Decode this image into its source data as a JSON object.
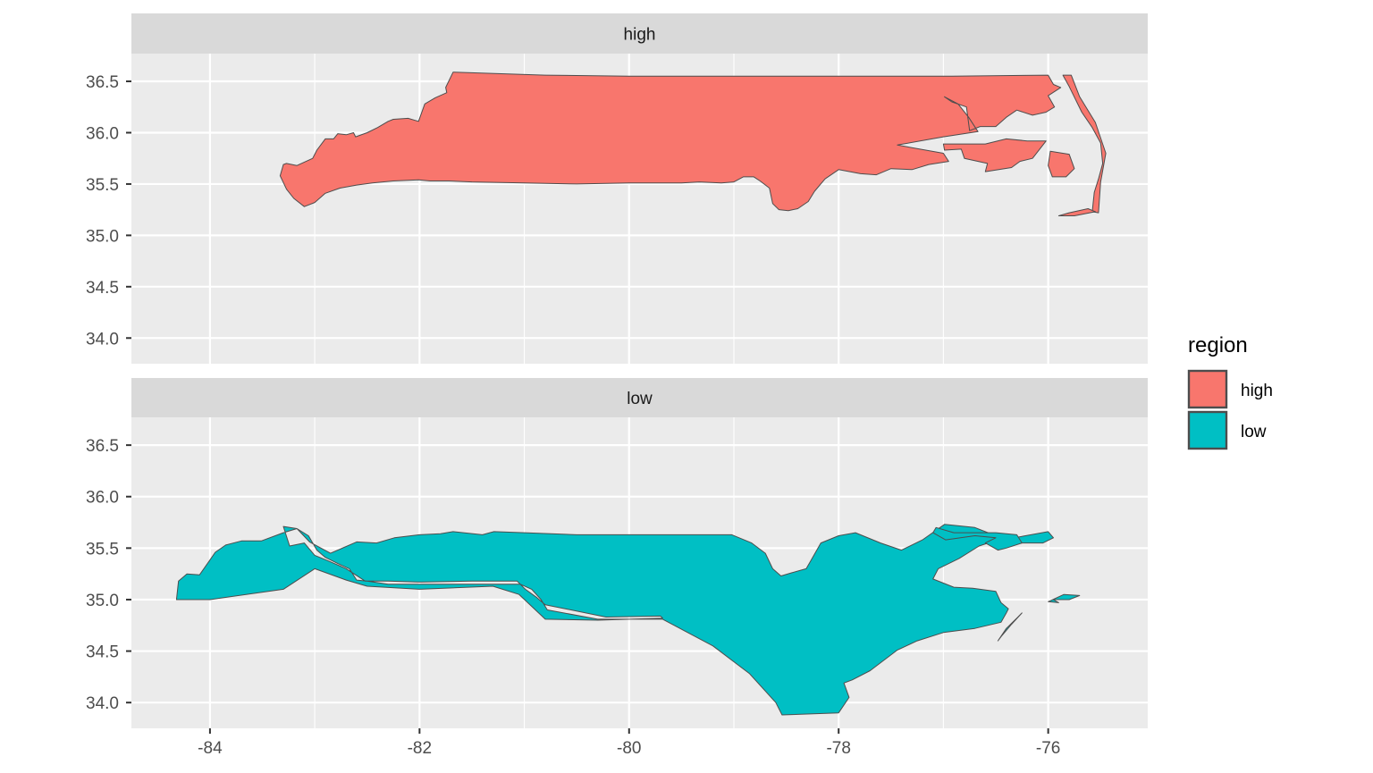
{
  "chart_data": {
    "type": "map",
    "facet_variable": "region",
    "facets": [
      "high",
      "low"
    ],
    "x_ticks": [
      -84,
      -82,
      -80,
      -78,
      -76
    ],
    "x_tick_labels": [
      "-84",
      "-82",
      "-80",
      "-78",
      "-76"
    ],
    "y_ticks": [
      34.0,
      34.5,
      35.0,
      35.5,
      36.0,
      36.5
    ],
    "y_tick_labels": [
      "34.0",
      "34.5",
      "35.0",
      "35.5",
      "36.0",
      "36.5"
    ],
    "xlim": [
      -84.75,
      -75.05
    ],
    "ylim": [
      33.75,
      36.77
    ],
    "grid": true,
    "legend": {
      "title": "region",
      "position": "right",
      "entries": [
        {
          "label": "high",
          "color": "#F8766D"
        },
        {
          "label": "low",
          "color": "#00BFC4"
        }
      ]
    },
    "colors": {
      "panel_bg": "#EBEBEB",
      "strip_bg": "#D9D9D9",
      "grid": "#FFFFFF",
      "outline": "#4D4D4D"
    },
    "regions": {
      "high": {
        "main": [
          [
            -83.27,
            35.7
          ],
          [
            -83.17,
            35.68
          ],
          [
            -83.02,
            35.75
          ],
          [
            -82.98,
            35.83
          ],
          [
            -82.9,
            35.94
          ],
          [
            -82.82,
            35.94
          ],
          [
            -82.78,
            35.99
          ],
          [
            -82.7,
            35.98
          ],
          [
            -82.63,
            36.0
          ],
          [
            -82.61,
            35.96
          ],
          [
            -82.5,
            36.0
          ],
          [
            -82.4,
            36.05
          ],
          [
            -82.3,
            36.11
          ],
          [
            -82.25,
            36.13
          ],
          [
            -82.11,
            36.14
          ],
          [
            -82.01,
            36.11
          ],
          [
            -81.95,
            36.28
          ],
          [
            -81.85,
            36.34
          ],
          [
            -81.74,
            36.39
          ],
          [
            -81.75,
            36.44
          ],
          [
            -81.68,
            36.59
          ],
          [
            -80.8,
            36.56
          ],
          [
            -80.0,
            36.55
          ],
          [
            -79.0,
            36.55
          ],
          [
            -78.0,
            36.55
          ],
          [
            -76.92,
            36.55
          ],
          [
            -76.0,
            36.56
          ],
          [
            -75.95,
            36.47
          ],
          [
            -75.88,
            36.44
          ],
          [
            -76.0,
            36.36
          ],
          [
            -75.94,
            36.25
          ],
          [
            -76.02,
            36.2
          ],
          [
            -76.15,
            36.17
          ],
          [
            -76.3,
            36.22
          ],
          [
            -76.4,
            36.15
          ],
          [
            -76.5,
            36.06
          ],
          [
            -76.65,
            36.06
          ],
          [
            -76.75,
            36.02
          ],
          [
            -76.78,
            36.25
          ],
          [
            -76.92,
            36.3
          ],
          [
            -76.99,
            36.35
          ],
          [
            -76.86,
            36.28
          ],
          [
            -76.76,
            36.15
          ],
          [
            -76.67,
            36.01
          ],
          [
            -77.0,
            35.96
          ],
          [
            -77.44,
            35.88
          ],
          [
            -77.0,
            35.8
          ],
          [
            -76.95,
            35.72
          ],
          [
            -77.14,
            35.69
          ],
          [
            -77.3,
            35.64
          ],
          [
            -77.5,
            35.65
          ],
          [
            -77.64,
            35.59
          ],
          [
            -77.79,
            35.6
          ],
          [
            -78.0,
            35.64
          ],
          [
            -78.13,
            35.55
          ],
          [
            -78.23,
            35.43
          ],
          [
            -78.29,
            35.33
          ],
          [
            -78.39,
            35.26
          ],
          [
            -78.48,
            35.24
          ],
          [
            -78.57,
            35.25
          ],
          [
            -78.63,
            35.31
          ],
          [
            -78.66,
            35.46
          ],
          [
            -78.75,
            35.53
          ],
          [
            -78.81,
            35.57
          ],
          [
            -78.91,
            35.57
          ],
          [
            -79.0,
            35.52
          ],
          [
            -79.12,
            35.51
          ],
          [
            -79.33,
            35.52
          ],
          [
            -79.5,
            35.51
          ],
          [
            -80.0,
            35.51
          ],
          [
            -80.5,
            35.5
          ],
          [
            -81.0,
            35.51
          ],
          [
            -81.5,
            35.52
          ],
          [
            -81.72,
            35.53
          ],
          [
            -81.9,
            35.53
          ],
          [
            -82.01,
            35.54
          ],
          [
            -82.25,
            35.53
          ],
          [
            -82.45,
            35.51
          ],
          [
            -82.6,
            35.49
          ],
          [
            -82.76,
            35.46
          ],
          [
            -82.9,
            35.41
          ],
          [
            -83.0,
            35.32
          ],
          [
            -83.1,
            35.28
          ],
          [
            -83.2,
            35.36
          ],
          [
            -83.27,
            35.45
          ],
          [
            -83.33,
            35.58
          ],
          [
            -83.3,
            35.69
          ]
        ],
        "islands": [
          [
            [
              -75.98,
              35.82
            ],
            [
              -75.8,
              35.79
            ],
            [
              -75.75,
              35.65
            ],
            [
              -75.83,
              35.57
            ],
            [
              -75.96,
              35.57
            ],
            [
              -76.0,
              35.68
            ]
          ],
          [
            [
              -76.02,
              35.92
            ],
            [
              -76.15,
              35.75
            ],
            [
              -76.27,
              35.72
            ],
            [
              -76.35,
              35.66
            ],
            [
              -76.6,
              35.62
            ],
            [
              -76.58,
              35.7
            ],
            [
              -76.8,
              35.75
            ],
            [
              -76.83,
              35.84
            ],
            [
              -76.99,
              35.83
            ],
            [
              -77.0,
              35.89
            ],
            [
              -76.6,
              35.89
            ],
            [
              -76.4,
              35.94
            ],
            [
              -76.2,
              35.92
            ]
          ],
          [
            [
              -75.86,
              36.56
            ],
            [
              -75.8,
              36.45
            ],
            [
              -75.68,
              36.2
            ],
            [
              -75.58,
              36.05
            ],
            [
              -75.5,
              35.9
            ],
            [
              -75.48,
              35.7
            ],
            [
              -75.52,
              35.55
            ],
            [
              -75.56,
              35.42
            ],
            [
              -75.58,
              35.23
            ],
            [
              -75.52,
              35.22
            ],
            [
              -75.5,
              35.52
            ],
            [
              -75.45,
              35.8
            ],
            [
              -75.55,
              36.1
            ],
            [
              -75.7,
              36.35
            ],
            [
              -75.78,
              36.56
            ]
          ],
          [
            [
              -75.55,
              35.23
            ],
            [
              -75.75,
              35.19
            ],
            [
              -75.9,
              35.19
            ],
            [
              -75.8,
              35.22
            ],
            [
              -75.62,
              35.26
            ]
          ]
        ]
      },
      "low": {
        "main": [
          [
            -84.32,
            35.0
          ],
          [
            -84.3,
            35.18
          ],
          [
            -84.22,
            35.25
          ],
          [
            -84.1,
            35.24
          ],
          [
            -84.01,
            35.37
          ],
          [
            -83.95,
            35.46
          ],
          [
            -83.85,
            35.53
          ],
          [
            -83.7,
            35.57
          ],
          [
            -83.51,
            35.57
          ],
          [
            -83.3,
            35.65
          ],
          [
            -83.17,
            35.69
          ],
          [
            -83.06,
            35.62
          ],
          [
            -82.98,
            35.48
          ],
          [
            -82.9,
            35.41
          ],
          [
            -82.78,
            35.35
          ],
          [
            -82.67,
            35.3
          ],
          [
            -82.6,
            35.19
          ],
          [
            -82.5,
            35.18
          ],
          [
            -82.3,
            35.15
          ],
          [
            -82.0,
            35.15
          ],
          [
            -81.5,
            35.15
          ],
          [
            -81.04,
            35.15
          ],
          [
            -80.93,
            35.1
          ],
          [
            -80.84,
            35.0
          ],
          [
            -80.78,
            34.9
          ],
          [
            -80.3,
            34.81
          ],
          [
            -79.68,
            34.81
          ],
          [
            -79.2,
            34.55
          ],
          [
            -78.85,
            34.28
          ],
          [
            -78.6,
            34.0
          ],
          [
            -78.54,
            33.88
          ],
          [
            -78.0,
            33.9
          ],
          [
            -77.9,
            34.05
          ],
          [
            -77.95,
            34.19
          ],
          [
            -77.87,
            34.22
          ],
          [
            -77.7,
            34.31
          ],
          [
            -77.44,
            34.51
          ],
          [
            -77.25,
            34.6
          ],
          [
            -77.0,
            34.68
          ],
          [
            -76.7,
            34.72
          ],
          [
            -76.45,
            34.78
          ],
          [
            -76.4,
            34.87
          ],
          [
            -76.38,
            34.91
          ],
          [
            -76.45,
            34.97
          ],
          [
            -76.5,
            35.08
          ],
          [
            -76.72,
            35.11
          ],
          [
            -76.9,
            35.12
          ],
          [
            -77.1,
            35.2
          ],
          [
            -77.05,
            35.3
          ],
          [
            -76.85,
            35.4
          ],
          [
            -76.66,
            35.52
          ],
          [
            -76.54,
            35.56
          ],
          [
            -76.0,
            35.66
          ],
          [
            -75.95,
            35.6
          ],
          [
            -76.05,
            35.55
          ],
          [
            -76.28,
            35.55
          ],
          [
            -76.5,
            35.62
          ],
          [
            -76.7,
            35.7
          ],
          [
            -76.99,
            35.73
          ],
          [
            -77.2,
            35.58
          ],
          [
            -77.4,
            35.48
          ],
          [
            -77.6,
            35.55
          ],
          [
            -77.84,
            35.65
          ],
          [
            -78.0,
            35.62
          ],
          [
            -78.17,
            35.55
          ],
          [
            -78.27,
            35.37
          ],
          [
            -78.31,
            35.3
          ],
          [
            -78.45,
            35.26
          ],
          [
            -78.55,
            35.23
          ],
          [
            -78.63,
            35.3
          ],
          [
            -78.7,
            35.45
          ],
          [
            -78.83,
            35.55
          ],
          [
            -79.02,
            35.63
          ],
          [
            -79.3,
            35.63
          ],
          [
            -79.5,
            35.63
          ],
          [
            -80.0,
            35.63
          ],
          [
            -80.5,
            35.63
          ],
          [
            -81.0,
            35.65
          ],
          [
            -81.29,
            35.66
          ],
          [
            -81.4,
            35.63
          ],
          [
            -81.68,
            35.66
          ],
          [
            -81.8,
            35.64
          ],
          [
            -82.0,
            35.63
          ],
          [
            -82.24,
            35.6
          ],
          [
            -82.41,
            35.55
          ],
          [
            -82.6,
            35.56
          ],
          [
            -82.85,
            35.45
          ],
          [
            -83.05,
            35.56
          ],
          [
            -83.17,
            35.69
          ],
          [
            -83.3,
            35.71
          ],
          [
            -83.24,
            35.52
          ],
          [
            -83.1,
            35.55
          ],
          [
            -83.0,
            35.43
          ],
          [
            -82.88,
            35.38
          ],
          [
            -82.7,
            35.3
          ],
          [
            -82.52,
            35.18
          ],
          [
            -82.3,
            35.18
          ],
          [
            -82.0,
            35.17
          ],
          [
            -81.5,
            35.18
          ],
          [
            -81.07,
            35.18
          ],
          [
            -80.99,
            35.1
          ],
          [
            -80.88,
            35.02
          ],
          [
            -80.8,
            34.95
          ],
          [
            -80.22,
            34.83
          ],
          [
            -79.7,
            34.84
          ],
          [
            -79.68,
            34.82
          ],
          [
            -80.3,
            34.8
          ],
          [
            -80.8,
            34.81
          ],
          [
            -81.05,
            35.05
          ],
          [
            -81.3,
            35.13
          ],
          [
            -82.0,
            35.1
          ],
          [
            -82.5,
            35.13
          ],
          [
            -82.7,
            35.19
          ],
          [
            -83.0,
            35.3
          ],
          [
            -83.3,
            35.1
          ],
          [
            -84.0,
            35.0
          ]
        ],
        "islands": [
          [
            [
              -77.07,
              35.7
            ],
            [
              -76.9,
              35.65
            ],
            [
              -76.5,
              35.65
            ],
            [
              -76.3,
              35.63
            ],
            [
              -76.25,
              35.55
            ],
            [
              -76.4,
              35.5
            ],
            [
              -76.48,
              35.48
            ],
            [
              -76.6,
              35.55
            ],
            [
              -76.5,
              35.6
            ],
            [
              -76.7,
              35.62
            ],
            [
              -76.98,
              35.58
            ],
            [
              -77.1,
              35.65
            ]
          ],
          [
            [
              -75.8,
              35.0
            ],
            [
              -75.95,
              35.0
            ],
            [
              -75.9,
              34.97
            ],
            [
              -76.0,
              34.98
            ],
            [
              -75.85,
              35.05
            ],
            [
              -75.7,
              35.04
            ]
          ],
          [
            [
              -76.48,
              34.6
            ],
            [
              -76.4,
              34.72
            ],
            [
              -76.3,
              34.82
            ],
            [
              -76.25,
              34.87
            ],
            [
              -76.35,
              34.76
            ],
            [
              -76.45,
              34.64
            ]
          ]
        ]
      }
    }
  }
}
